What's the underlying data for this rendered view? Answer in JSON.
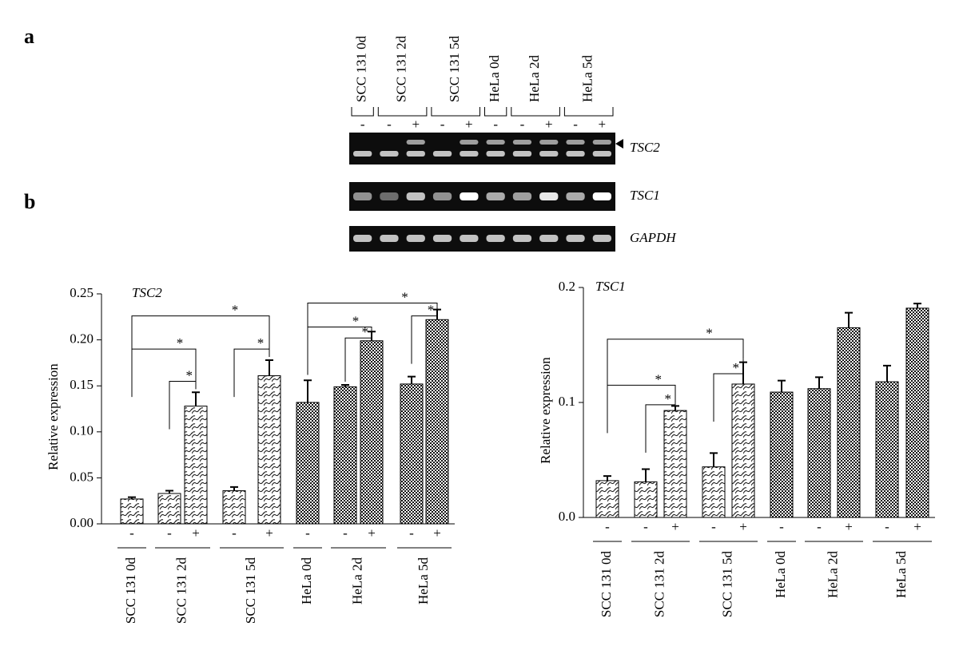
{
  "panel_labels": [
    "a",
    "b"
  ],
  "gel": {
    "lane_groups": [
      {
        "label": "SCC 131 0d",
        "signs": [
          "-"
        ]
      },
      {
        "label": "SCC 131 2d",
        "signs": [
          "-",
          "+"
        ]
      },
      {
        "label": "SCC 131 5d",
        "signs": [
          "-",
          "+"
        ]
      },
      {
        "label": "HeLa 0d",
        "signs": [
          "-"
        ]
      },
      {
        "label": "HeLa 2d",
        "signs": [
          "-",
          "+"
        ]
      },
      {
        "label": "HeLa 5d",
        "signs": [
          "-",
          "+"
        ]
      }
    ],
    "genes": [
      "TSC2",
      "TSC1",
      "GAPDH"
    ]
  },
  "chart_data": [
    {
      "type": "bar",
      "title": "TSC2",
      "y_label": "Relative expression",
      "ylim": [
        0,
        0.25
      ],
      "yticks": [
        {
          "value": 0,
          "label": "0.00"
        },
        0.05,
        {
          "value": 0.1,
          "label": "0.10"
        },
        0.15,
        {
          "value": 0.2,
          "label": "0.20"
        },
        0.25
      ],
      "groups": [
        {
          "name": "SCC 131 0d",
          "pattern": "wave",
          "signs": [
            "-"
          ],
          "values": [
            0.027
          ],
          "errors": [
            0.002
          ]
        },
        {
          "name": "SCC 131 2d",
          "pattern": "wave",
          "signs": [
            "-",
            "+"
          ],
          "values": [
            0.033,
            0.128
          ],
          "errors": [
            0.003,
            0.015
          ]
        },
        {
          "name": "SCC 131 5d",
          "pattern": "wave",
          "signs": [
            "-",
            "+"
          ],
          "values": [
            0.036,
            0.161
          ],
          "errors": [
            0.004,
            0.017
          ]
        },
        {
          "name": "HeLa 0d",
          "pattern": "check",
          "signs": [
            "-"
          ],
          "values": [
            0.132
          ],
          "errors": [
            0.024
          ]
        },
        {
          "name": "HeLa 2d",
          "pattern": "check",
          "signs": [
            "-",
            "+"
          ],
          "values": [
            0.149,
            0.199
          ],
          "errors": [
            0.002,
            0.01
          ]
        },
        {
          "name": "HeLa 5d",
          "pattern": "check",
          "signs": [
            "-",
            "+"
          ],
          "values": [
            0.152,
            0.222
          ],
          "errors": [
            0.008,
            0.011
          ]
        }
      ],
      "significance": [
        "*",
        "*",
        "*",
        "*",
        "*",
        "*",
        "*",
        "*"
      ]
    },
    {
      "type": "bar",
      "title": "TSC1",
      "y_label": "Relative expression",
      "ylim": [
        0,
        0.2
      ],
      "yticks": [
        {
          "value": 0,
          "label": "0.0"
        },
        0.1,
        0.2
      ],
      "groups": [
        {
          "name": "SCC 131 0d",
          "pattern": "wave",
          "signs": [
            "-"
          ],
          "values": [
            0.032
          ],
          "errors": [
            0.004
          ]
        },
        {
          "name": "SCC 131 2d",
          "pattern": "wave",
          "signs": [
            "-",
            "+"
          ],
          "values": [
            0.031,
            0.093
          ],
          "errors": [
            0.011,
            0.004
          ]
        },
        {
          "name": "SCC 131 5d",
          "pattern": "wave",
          "signs": [
            "-",
            "+"
          ],
          "values": [
            0.044,
            0.116
          ],
          "errors": [
            0.012,
            0.019
          ]
        },
        {
          "name": "HeLa 0d",
          "pattern": "check",
          "signs": [
            "-"
          ],
          "values": [
            0.109
          ],
          "errors": [
            0.01
          ]
        },
        {
          "name": "HeLa 2d",
          "pattern": "check",
          "signs": [
            "-",
            "+"
          ],
          "values": [
            0.112,
            0.165
          ],
          "errors": [
            0.01,
            0.013
          ]
        },
        {
          "name": "HeLa 5d",
          "pattern": "check",
          "signs": [
            "-",
            "+"
          ],
          "values": [
            0.118,
            0.182
          ],
          "errors": [
            0.014,
            0.004
          ]
        }
      ],
      "significance": [
        "*",
        "*",
        "*",
        "*"
      ]
    }
  ]
}
